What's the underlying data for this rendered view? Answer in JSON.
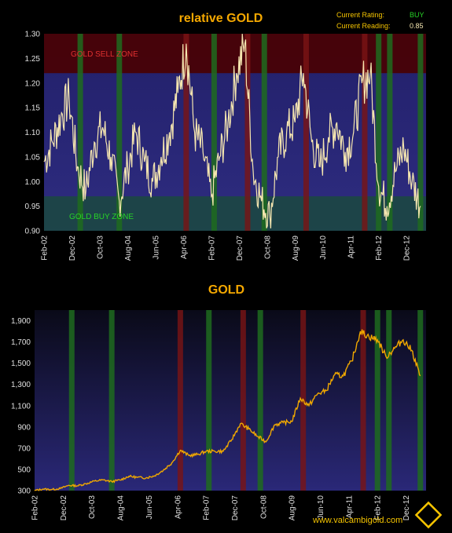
{
  "status": {
    "rating_label": "Current Rating:",
    "rating_value": "BUY",
    "reading_label": "Current Reading:",
    "reading_value": "0.85"
  },
  "footer": {
    "url": "www.valcambigold.com"
  },
  "logo": {
    "icon": "diamond-logo-icon"
  },
  "colors": {
    "title": "#f5a800",
    "sell_zone": "#5a0000",
    "buy_zone": "#1f4a4a",
    "plot_bg": "#252466",
    "line_rel": "#f5e6b0",
    "line_gold": "#f0a800",
    "buy_bar": "#1f6b1f",
    "sell_bar": "#7a1414"
  },
  "signals": {
    "buy": [
      "2003-03",
      "2004-05",
      "2007-03",
      "2008-09",
      "2012-02",
      "2012-06",
      "2013-05"
    ],
    "sell": [
      "2006-05",
      "2008-03",
      "2009-12",
      "2011-09"
    ]
  },
  "chart_data": [
    {
      "type": "line",
      "title": "relative GOLD",
      "xlabel": "",
      "ylabel": "",
      "ylim": [
        0.9,
        1.3
      ],
      "yticks": [
        "1.30",
        "1.25",
        "1.20",
        "1.15",
        "1.10",
        "1.05",
        "1.00",
        "0.95",
        "0.90"
      ],
      "xticks": [
        "Feb-02",
        "Dec-02",
        "Oct-03",
        "Aug-04",
        "Jun-05",
        "Apr-06",
        "Feb-07",
        "Dec-07",
        "Oct-08",
        "Aug-09",
        "Jun-10",
        "Apr-11",
        "Feb-12",
        "Dec-12"
      ],
      "zones": [
        {
          "label": "GOLD SELL ZONE",
          "from": 1.22,
          "to": 1.3
        },
        {
          "label": "GOLD BUY ZONE",
          "from": 0.9,
          "to": 0.97
        }
      ],
      "series": [
        {
          "x": [
            "2002-02",
            "2002-05",
            "2002-08",
            "2002-11",
            "2003-02",
            "2003-05",
            "2003-08",
            "2003-11",
            "2004-02",
            "2004-05",
            "2004-08",
            "2004-11",
            "2005-02",
            "2005-05",
            "2005-08",
            "2005-11",
            "2006-02",
            "2006-05",
            "2006-08",
            "2006-11",
            "2007-02",
            "2007-05",
            "2007-08",
            "2007-11",
            "2008-02",
            "2008-05",
            "2008-08",
            "2008-11",
            "2009-02",
            "2009-05",
            "2009-08",
            "2009-11",
            "2010-02",
            "2010-05",
            "2010-08",
            "2010-11",
            "2011-02",
            "2011-05",
            "2011-08",
            "2011-11",
            "2012-02",
            "2012-05",
            "2012-08",
            "2012-11",
            "2013-02",
            "2013-05"
          ],
          "values": [
            1.04,
            1.08,
            1.13,
            1.17,
            1.03,
            0.98,
            1.08,
            1.11,
            1.05,
            0.96,
            1.03,
            1.1,
            1.04,
            1.0,
            1.05,
            1.1,
            1.18,
            1.28,
            1.1,
            1.06,
            0.97,
            1.05,
            1.12,
            1.22,
            1.28,
            1.02,
            0.96,
            0.93,
            1.05,
            1.1,
            1.12,
            1.22,
            1.08,
            1.03,
            1.09,
            1.12,
            1.06,
            1.1,
            1.2,
            1.22,
            0.99,
            0.95,
            1.02,
            1.07,
            1.0,
            0.95
          ]
        }
      ]
    },
    {
      "type": "line",
      "title": "GOLD",
      "xlabel": "",
      "ylabel": "",
      "ylim": [
        300,
        2000
      ],
      "yticks": [
        "1,900",
        "1,700",
        "1,500",
        "1,300",
        "1,100",
        "900",
        "700",
        "500",
        "300"
      ],
      "xticks": [
        "Feb-02",
        "Dec-02",
        "Oct-03",
        "Aug-04",
        "Jun-05",
        "Apr-06",
        "Feb-07",
        "Dec-07",
        "Oct-08",
        "Aug-09",
        "Jun-10",
        "Apr-11",
        "Feb-12",
        "Dec-12"
      ],
      "series": [
        {
          "x": [
            "2002-02",
            "2002-05",
            "2002-08",
            "2002-11",
            "2003-02",
            "2003-05",
            "2003-08",
            "2003-11",
            "2004-02",
            "2004-05",
            "2004-08",
            "2004-11",
            "2005-02",
            "2005-05",
            "2005-08",
            "2005-11",
            "2006-02",
            "2006-05",
            "2006-08",
            "2006-11",
            "2007-02",
            "2007-05",
            "2007-08",
            "2007-11",
            "2008-02",
            "2008-05",
            "2008-08",
            "2008-11",
            "2009-02",
            "2009-05",
            "2009-08",
            "2009-11",
            "2010-02",
            "2010-05",
            "2010-08",
            "2010-11",
            "2011-02",
            "2011-05",
            "2011-08",
            "2011-11",
            "2012-02",
            "2012-05",
            "2012-08",
            "2012-11",
            "2013-02",
            "2013-05"
          ],
          "values": [
            300,
            315,
            310,
            320,
            350,
            345,
            365,
            390,
            400,
            385,
            400,
            435,
            425,
            420,
            440,
            490,
            560,
            680,
            630,
            640,
            670,
            670,
            670,
            780,
            930,
            880,
            810,
            760,
            920,
            940,
            950,
            1170,
            1100,
            1210,
            1240,
            1390,
            1380,
            1520,
            1800,
            1750,
            1720,
            1560,
            1640,
            1720,
            1620,
            1380
          ]
        }
      ]
    }
  ]
}
